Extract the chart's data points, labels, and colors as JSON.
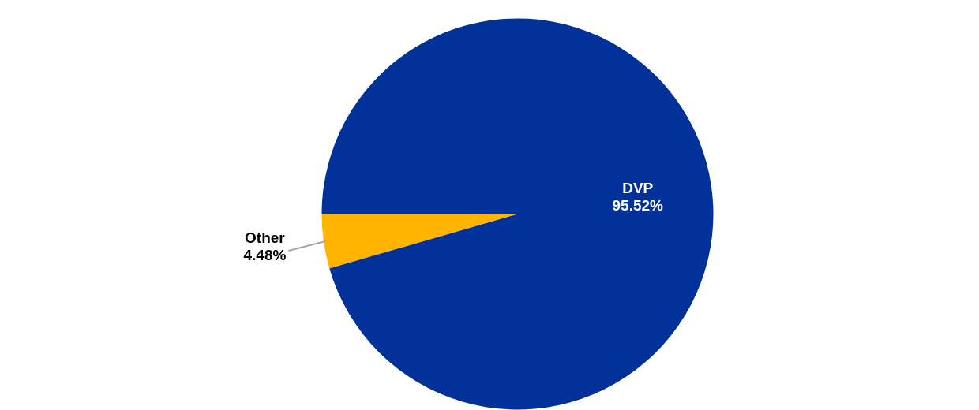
{
  "chart_data": {
    "type": "pie",
    "categories": [
      "Other",
      "DVP"
    ],
    "values": [
      4.48,
      95.52
    ],
    "colors": [
      "#ffb400",
      "#023299"
    ],
    "value_labels": [
      "4.48%",
      "95.52%"
    ]
  }
}
